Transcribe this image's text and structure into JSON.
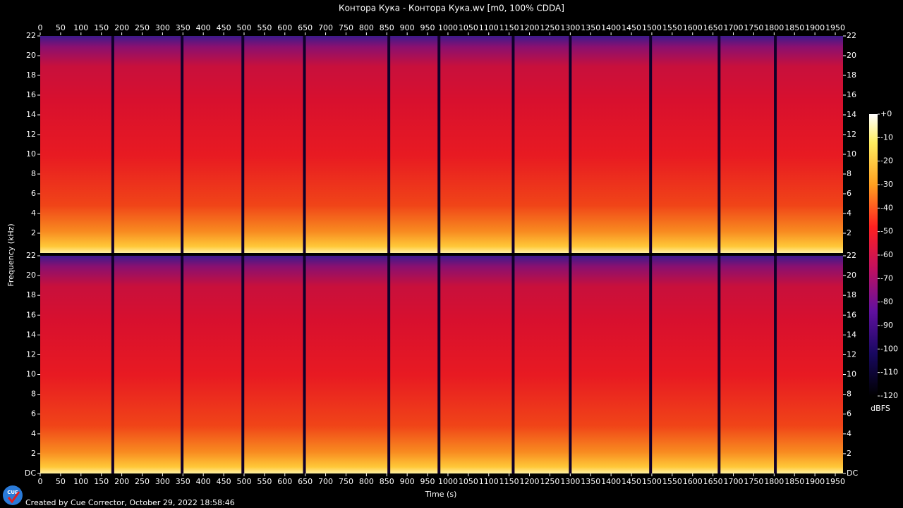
{
  "chart_data": {
    "type": "spectrogram",
    "title": "Контора Кука - Контора Кука.wv [m0, 100% CDDA]",
    "x_label": "Time (s)",
    "y_label": "Frequency (kHz)",
    "xlim": [
      0,
      1969
    ],
    "xticks": [
      0,
      50,
      100,
      150,
      200,
      250,
      300,
      350,
      400,
      450,
      500,
      550,
      600,
      650,
      700,
      750,
      800,
      850,
      900,
      950,
      1000,
      1050,
      1100,
      1150,
      1200,
      1250,
      1300,
      1350,
      1400,
      1450,
      1500,
      1550,
      1600,
      1650,
      1700,
      1750,
      1800,
      1850,
      1900,
      1950
    ],
    "channels": [
      {
        "ylim": [
          0,
          22
        ],
        "yticks": [
          2,
          4,
          6,
          8,
          10,
          12,
          14,
          16,
          18,
          20,
          22
        ]
      },
      {
        "ylim": [
          0,
          22
        ],
        "yticks": [
          {
            "value": 0,
            "label": "DC"
          },
          2,
          4,
          6,
          8,
          10,
          12,
          14,
          16,
          18,
          20,
          22
        ]
      }
    ],
    "track_boundaries": [
      178,
      348,
      497,
      648,
      855,
      978,
      1160,
      1300,
      1497,
      1665,
      1803
    ],
    "colorbar": {
      "label": "dBFS",
      "lim": [
        -120,
        0
      ],
      "ticks": [
        {
          "value": 0,
          "label": "+0"
        },
        -10,
        -20,
        -30,
        -40,
        -50,
        -60,
        -70,
        -80,
        -90,
        -100,
        -110,
        -120
      ]
    }
  },
  "footer": "Created by Cue Corrector, October 29, 2022 18:58:46",
  "logo": "CUE"
}
